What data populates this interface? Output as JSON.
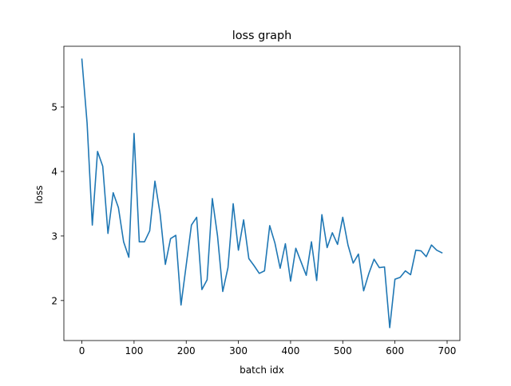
{
  "chart_data": {
    "type": "line",
    "title": "loss graph",
    "xlabel": "batch idx",
    "ylabel": "loss",
    "xlim": [
      -34.5,
      724.5
    ],
    "ylim": [
      1.38,
      5.94
    ],
    "xticks": [
      0,
      100,
      200,
      300,
      400,
      500,
      600,
      700
    ],
    "yticks": [
      2,
      3,
      4,
      5
    ],
    "grid": false,
    "legend": "none",
    "series": [
      {
        "color": "#1f77b4",
        "x": [
          0,
          10,
          20,
          30,
          40,
          50,
          60,
          70,
          80,
          90,
          100,
          110,
          120,
          130,
          140,
          150,
          160,
          170,
          180,
          190,
          200,
          210,
          220,
          230,
          240,
          250,
          260,
          270,
          280,
          290,
          300,
          310,
          320,
          330,
          340,
          350,
          360,
          370,
          380,
          390,
          400,
          410,
          420,
          430,
          440,
          450,
          460,
          470,
          480,
          490,
          500,
          510,
          520,
          530,
          540,
          550,
          560,
          570,
          580,
          590,
          600,
          610,
          620,
          630,
          640,
          650,
          660,
          670,
          680,
          690
        ],
        "y": [
          5.74,
          4.75,
          3.17,
          4.31,
          4.08,
          3.04,
          3.67,
          3.44,
          2.91,
          2.67,
          4.59,
          2.91,
          2.91,
          3.08,
          3.85,
          3.34,
          2.56,
          2.96,
          3.01,
          1.93,
          2.55,
          3.17,
          3.29,
          2.17,
          2.32,
          3.58,
          3.0,
          2.14,
          2.51,
          3.5,
          2.78,
          3.25,
          2.65,
          2.54,
          2.42,
          2.46,
          3.16,
          2.89,
          2.5,
          2.88,
          2.3,
          2.81,
          2.6,
          2.39,
          2.91,
          2.31,
          3.33,
          2.82,
          3.05,
          2.87,
          3.29,
          2.86,
          2.58,
          2.72,
          2.15,
          2.42,
          2.64,
          2.51,
          2.52,
          1.58,
          2.33,
          2.36,
          2.46,
          2.4,
          2.78,
          2.77,
          2.68,
          2.86,
          2.78,
          2.74
        ]
      }
    ]
  }
}
